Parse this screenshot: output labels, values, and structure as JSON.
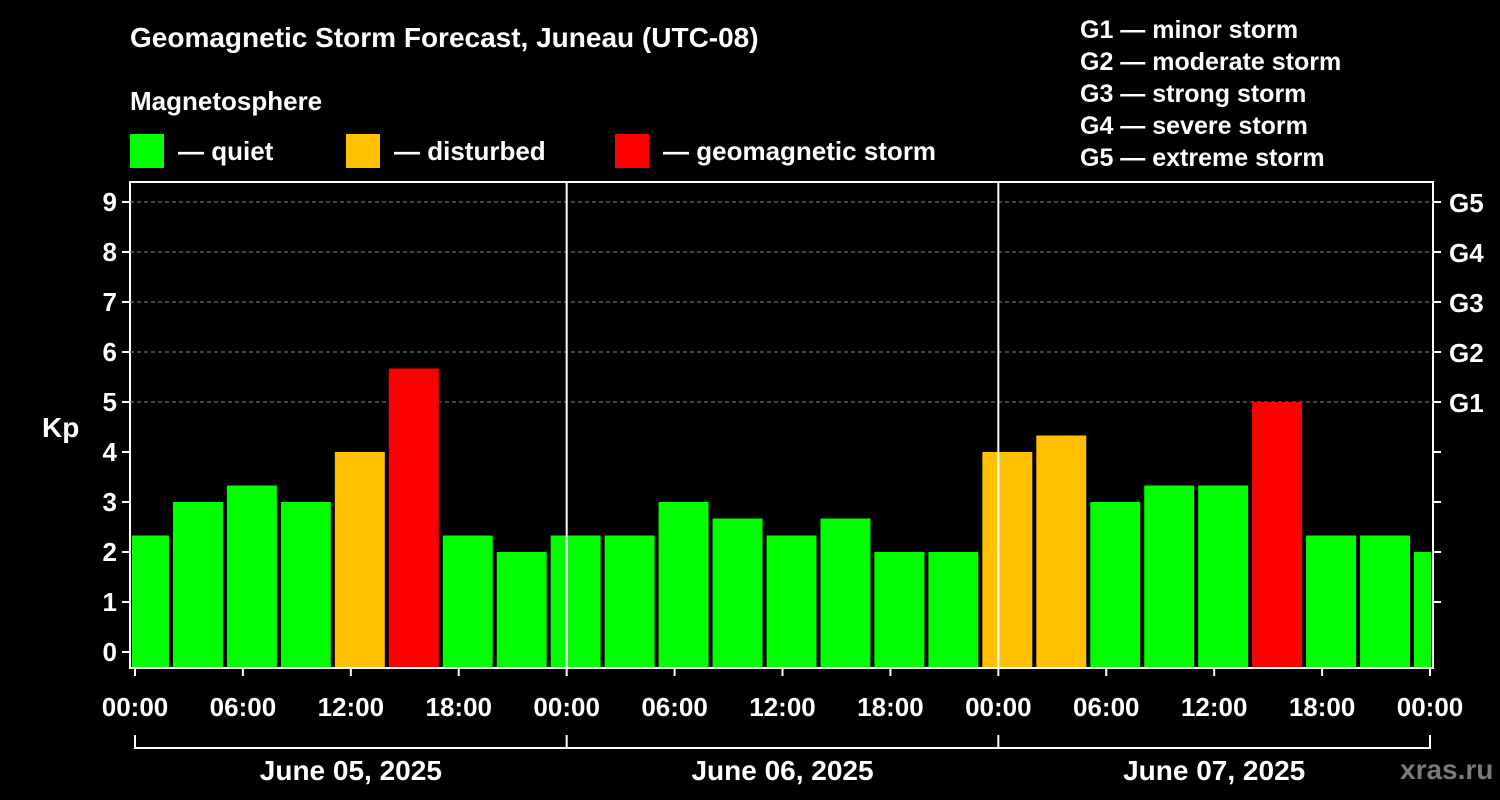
{
  "header": {
    "title": "Geomagnetic Storm Forecast, Juneau (UTC-08)",
    "subtitle": "Magnetosphere"
  },
  "legend": [
    {
      "label": "— quiet",
      "color": "#00ff00"
    },
    {
      "label": "— disturbed",
      "color": "#ffc000"
    },
    {
      "label": "— geomagnetic storm",
      "color": "#ff0000"
    }
  ],
  "storm_scale": [
    "G1 — minor storm",
    "G2 — moderate storm",
    "G3 — strong storm",
    "G4 — severe storm",
    "G5 — extreme storm"
  ],
  "watermark": "xras.ru",
  "chart_data": {
    "type": "bar",
    "title": "Geomagnetic Storm Forecast, Juneau (UTC-08)",
    "ylabel": "Kp",
    "ylim": [
      0,
      9
    ],
    "yticks": [
      "0",
      "1",
      "2",
      "3",
      "4",
      "5",
      "6",
      "7",
      "8",
      "9"
    ],
    "right_axis_labels": [
      {
        "kp": 5,
        "label": "G1"
      },
      {
        "kp": 6,
        "label": "G2"
      },
      {
        "kp": 7,
        "label": "G3"
      },
      {
        "kp": 8,
        "label": "G4"
      },
      {
        "kp": 9,
        "label": "G5"
      }
    ],
    "grid": "dashed horizontal at Kp 5-9",
    "xrange_hours": [
      0,
      72
    ],
    "xtick_labels": [
      "00:00",
      "06:00",
      "12:00",
      "18:00",
      "00:00",
      "06:00",
      "12:00",
      "18:00",
      "00:00",
      "06:00",
      "12:00",
      "18:00",
      "00:00"
    ],
    "days": [
      "June 05, 2025",
      "June 06, 2025",
      "June 07, 2025"
    ],
    "bars": [
      {
        "start_hour": -1,
        "kp": 2.33,
        "level": "quiet"
      },
      {
        "start_hour": 2,
        "kp": 3.0,
        "level": "quiet"
      },
      {
        "start_hour": 5,
        "kp": 3.33,
        "level": "quiet"
      },
      {
        "start_hour": 8,
        "kp": 3.0,
        "level": "quiet"
      },
      {
        "start_hour": 11,
        "kp": 4.0,
        "level": "disturbed"
      },
      {
        "start_hour": 14,
        "kp": 5.67,
        "level": "storm"
      },
      {
        "start_hour": 17,
        "kp": 2.33,
        "level": "quiet"
      },
      {
        "start_hour": 20,
        "kp": 2.0,
        "level": "quiet"
      },
      {
        "start_hour": 23,
        "kp": 2.33,
        "level": "quiet"
      },
      {
        "start_hour": 26,
        "kp": 2.33,
        "level": "quiet"
      },
      {
        "start_hour": 29,
        "kp": 3.0,
        "level": "quiet"
      },
      {
        "start_hour": 32,
        "kp": 2.67,
        "level": "quiet"
      },
      {
        "start_hour": 35,
        "kp": 2.33,
        "level": "quiet"
      },
      {
        "start_hour": 38,
        "kp": 2.67,
        "level": "quiet"
      },
      {
        "start_hour": 41,
        "kp": 2.0,
        "level": "quiet"
      },
      {
        "start_hour": 44,
        "kp": 2.0,
        "level": "quiet"
      },
      {
        "start_hour": 47,
        "kp": 4.0,
        "level": "disturbed"
      },
      {
        "start_hour": 50,
        "kp": 4.33,
        "level": "disturbed"
      },
      {
        "start_hour": 53,
        "kp": 3.0,
        "level": "quiet"
      },
      {
        "start_hour": 56,
        "kp": 3.33,
        "level": "quiet"
      },
      {
        "start_hour": 59,
        "kp": 3.33,
        "level": "quiet"
      },
      {
        "start_hour": 62,
        "kp": 5.0,
        "level": "storm"
      },
      {
        "start_hour": 65,
        "kp": 2.33,
        "level": "quiet"
      },
      {
        "start_hour": 68,
        "kp": 2.33,
        "level": "quiet"
      },
      {
        "start_hour": 71,
        "kp": 2.0,
        "level": "quiet"
      }
    ],
    "colors": {
      "quiet": "#00ff00",
      "disturbed": "#ffc000",
      "storm": "#ff0000"
    }
  }
}
